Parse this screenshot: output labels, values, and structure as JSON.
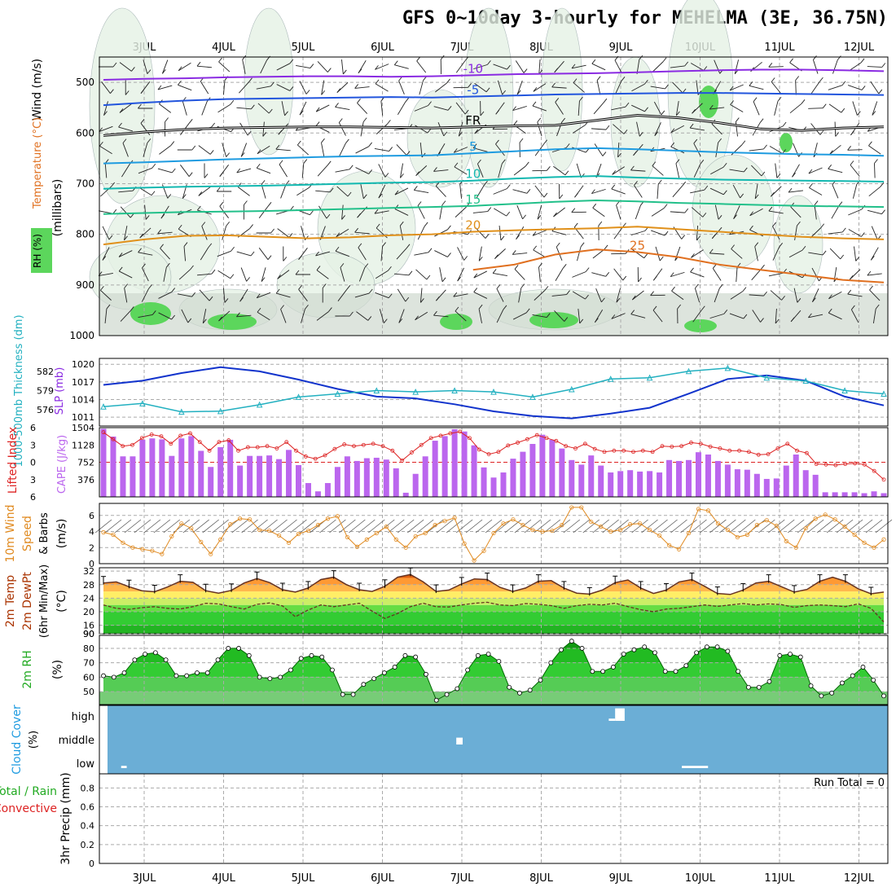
{
  "title": "GFS 0~10day 3-hourly for MEHELMA (3E, 36.75N)",
  "colors": {
    "purple": "#8a2be2",
    "blue": "#2255dd",
    "lightblue": "#1e9be0",
    "teal": "#12b8b0",
    "green": "#22c08a",
    "orange": "#e0901a",
    "darkorange": "#e07020",
    "cape": "#bb66ee",
    "lifted": "#dd2222",
    "slp": "#1133cc",
    "thick": "#22b0c0",
    "wind10": "#e08a20",
    "rhFill": "#3ad43a",
    "cloud": "#6baed6"
  },
  "panel_labels": {
    "upper": {
      "wind": "Wind (m/s)",
      "temperature": "Temperature (°C)",
      "rh": "RH (%)",
      "millibars": "(millibars)"
    },
    "slp": {
      "thickness": "1000-500mb Thickness (dm)",
      "slp": "SLP (mb)"
    },
    "cape": {
      "lifted": "Lifted Index",
      "cape": "CAPE (J/kg)"
    },
    "wind10": {
      "title": "10m Wind",
      "speed": "Speed",
      "barbs": "& Barbs",
      "unit": "(m/s)"
    },
    "temp2m": {
      "temp": "2m Temp",
      "dewpt": "2m DewPt",
      "minmax": "(6hr Min/Max)",
      "unit": "(°C)"
    },
    "rh2m": {
      "label": "2m RH",
      "unit": "(%)"
    },
    "cloud": {
      "label": "Cloud Cover",
      "unit": "(%)"
    },
    "precip": {
      "total": "Total / Rain",
      "conv": "Convective",
      "label": "3hr Precip (mm)",
      "run_total": "Run Total = 0"
    }
  },
  "chart_data": [
    {
      "type": "line",
      "name": "upper-air",
      "x_dates": [
        "3JUL",
        "4JUL",
        "5JUL",
        "6JUL",
        "7JUL",
        "8JUL",
        "9JUL",
        "10JUL",
        "11JUL",
        "12JUL"
      ],
      "y_ticks": [
        500,
        600,
        700,
        800,
        900,
        1000
      ],
      "ylim": [
        450,
        1000
      ],
      "contours": [
        {
          "label": "-10",
          "kind": "temperature",
          "values": [
            495,
            493,
            492,
            490,
            489,
            488,
            488,
            489,
            488,
            486,
            484,
            483,
            482,
            480,
            478,
            476,
            475,
            475,
            476,
            478
          ]
        },
        {
          "label": "-5",
          "kind": "temperature",
          "values": [
            545,
            540,
            536,
            533,
            532,
            531,
            530,
            529,
            530,
            528,
            526,
            524,
            523,
            522,
            521,
            521,
            522,
            523,
            524,
            525
          ]
        },
        {
          "label": "FR",
          "kind": "temperature",
          "values": [
            605,
            598,
            593,
            590,
            589,
            588,
            588,
            589,
            590,
            588,
            586,
            585,
            575,
            565,
            570,
            580,
            592,
            595,
            590,
            588
          ]
        },
        {
          "label": "5",
          "kind": "temperature",
          "values": [
            660,
            658,
            655,
            652,
            650,
            648,
            646,
            645,
            644,
            640,
            636,
            632,
            630,
            632,
            635,
            638,
            640,
            642,
            643,
            645
          ]
        },
        {
          "label": "10",
          "kind": "temperature",
          "values": [
            710,
            708,
            706,
            705,
            704,
            702,
            700,
            698,
            697,
            694,
            690,
            687,
            685,
            688,
            690,
            692,
            693,
            694,
            695,
            696
          ]
        },
        {
          "label": "15",
          "kind": "temperature",
          "values": [
            760,
            758,
            756,
            755,
            754,
            752,
            750,
            748,
            746,
            744,
            740,
            736,
            733,
            735,
            738,
            740,
            742,
            744,
            745,
            746
          ]
        },
        {
          "label": "20",
          "kind": "temperature",
          "values": [
            820,
            810,
            803,
            802,
            805,
            808,
            806,
            802,
            800,
            795,
            792,
            790,
            788,
            785,
            790,
            795,
            800,
            805,
            808,
            810
          ]
        },
        {
          "label": "25",
          "kind": "temperature",
          "values": [
            null,
            null,
            null,
            null,
            null,
            null,
            null,
            null,
            null,
            870,
            860,
            840,
            830,
            835,
            845,
            860,
            870,
            880,
            890,
            895
          ]
        }
      ]
    },
    {
      "type": "line",
      "name": "slp-thickness",
      "series": [
        {
          "name": "SLP (mb)",
          "values": [
            1016.5,
            1017.2,
            1018.5,
            1019.5,
            1018.8,
            1017.4,
            1015.8,
            1014.5,
            1014.2,
            1013.2,
            1012.0,
            1011.2,
            1010.8,
            1011.6,
            1012.6,
            1015.0,
            1017.5,
            1018.1,
            1017.2,
            1014.5,
            1013.0
          ]
        },
        {
          "name": "1000-500mb Thickness (dm)",
          "values": [
            576.5,
            577.0,
            575.7,
            575.8,
            576.8,
            578.0,
            578.5,
            579.0,
            578.8,
            579.0,
            578.8,
            578.0,
            579.2,
            580.8,
            581.0,
            582.0,
            582.5,
            581.0,
            580.5,
            579.0,
            578.5
          ]
        }
      ],
      "slp_ticks": [
        1011,
        1014,
        1017,
        1020
      ],
      "thick_ticks": [
        576,
        579,
        582
      ]
    },
    {
      "type": "bar",
      "name": "cape-lifted",
      "cape_ticks": [
        376,
        752,
        1128,
        1504
      ],
      "li_ticks": [
        -6,
        -3,
        0,
        3,
        6
      ],
      "cape": [
        1480,
        1310,
        880,
        880,
        1240,
        1270,
        1250,
        890,
        1270,
        1320,
        1000,
        650,
        1080,
        1240,
        680,
        890,
        890,
        900,
        820,
        1020,
        690,
        300,
        120,
        300,
        650,
        880,
        780,
        840,
        850,
        810,
        620,
        90,
        500,
        880,
        1220,
        1320,
        1470,
        1420,
        1120,
        640,
        420,
        530,
        830,
        980,
        1150,
        1350,
        1240,
        1050,
        800,
        700,
        900,
        680,
        530,
        560,
        580,
        550,
        560,
        530,
        800,
        780,
        800,
        970,
        920,
        780,
        700,
        600,
        590,
        500,
        390,
        400,
        680,
        920,
        580,
        480,
        100,
        100,
        100,
        100,
        80,
        120,
        80
      ],
      "lifted": [
        -5.2,
        -4.0,
        -2.8,
        -3.0,
        -4.2,
        -4.8,
        -4.5,
        -3.2,
        -4.6,
        -5.0,
        -3.5,
        -2.0,
        -3.5,
        -3.8,
        -2.0,
        -2.6,
        -2.6,
        -2.8,
        -2.4,
        -3.5,
        -2.0,
        -1.0,
        -0.6,
        -1.2,
        -2.3,
        -3.1,
        -2.8,
        -3.0,
        -3.2,
        -2.8,
        -2.0,
        -0.3,
        -1.7,
        -3.0,
        -4.2,
        -4.6,
        -5.0,
        -5.3,
        -4.2,
        -2.2,
        -1.4,
        -1.8,
        -2.9,
        -3.4,
        -4.0,
        -4.7,
        -4.2,
        -3.7,
        -2.8,
        -2.4,
        -3.2,
        -2.3,
        -1.8,
        -2.0,
        -2.0,
        -1.8,
        -2.0,
        -1.8,
        -2.8,
        -2.7,
        -2.8,
        -3.4,
        -3.2,
        -2.7,
        -2.4,
        -2.0,
        -2.0,
        -1.8,
        -1.3,
        -1.4,
        -2.4,
        -3.2,
        -2.0,
        -1.6,
        0.3,
        0.4,
        0.5,
        0.3,
        0.2,
        0.4,
        1.5,
        3.0
      ]
    },
    {
      "type": "line",
      "name": "10m-wind",
      "y_ticks": [
        0,
        2,
        4,
        6
      ],
      "speed": [
        3.9,
        3.6,
        2.6,
        2.0,
        1.8,
        1.6,
        1.2,
        3.4,
        5.0,
        4.4,
        2.7,
        1.2,
        3.0,
        4.9,
        5.6,
        5.5,
        4.2,
        4.1,
        3.5,
        2.6,
        3.7,
        4.1,
        4.8,
        5.6,
        5.9,
        3.3,
        2.1,
        3.0,
        3.8,
        4.6,
        3.0,
        2.0,
        3.4,
        3.8,
        4.8,
        5.3,
        5.7,
        2.5,
        0.4,
        1.6,
        3.8,
        5.0,
        5.5,
        4.8,
        4.2,
        4.0,
        4.1,
        4.8,
        7.0,
        7.0,
        5.2,
        4.6,
        4.0,
        4.2,
        4.9,
        5.0,
        4.2,
        3.5,
        2.3,
        1.8,
        3.8,
        6.8,
        6.6,
        5.0,
        4.2,
        3.3,
        3.6,
        4.8,
        5.4,
        4.7,
        2.8,
        2.0,
        4.4,
        5.6,
        6.1,
        5.5,
        4.6,
        3.6,
        2.6,
        2.0,
        3.0
      ]
    },
    {
      "type": "area",
      "name": "2m-temp",
      "y_ticks": [
        16,
        20,
        24,
        28,
        32
      ],
      "temp": [
        28.5,
        28.8,
        27.4,
        26.2,
        25.9,
        27.3,
        29.0,
        28.7,
        26.2,
        25.5,
        26.3,
        28.5,
        29.8,
        28.6,
        26.5,
        25.8,
        27.0,
        29.5,
        30.2,
        28.0,
        26.5,
        26.0,
        27.5,
        30.2,
        31.0,
        28.8,
        26.0,
        26.4,
        28.2,
        29.7,
        29.5,
        27.2,
        26.0,
        27.0,
        29.0,
        29.2,
        27.0,
        25.5,
        25.2,
        26.4,
        28.6,
        29.4,
        27.0,
        25.4,
        26.4,
        28.8,
        29.5,
        27.5,
        25.4,
        25.1,
        26.4,
        28.5,
        29.0,
        27.4,
        25.8,
        26.6,
        29.0,
        30.2,
        29.0,
        26.8,
        25.3,
        25.8
      ],
      "dewpt": [
        22.0,
        21.0,
        20.7,
        21.2,
        21.5,
        21.0,
        20.8,
        21.5,
        22.5,
        22.3,
        21.5,
        20.8,
        22.2,
        22.6,
        21.7,
        18.5,
        20.5,
        22.0,
        21.5,
        22.0,
        22.5,
        20.2,
        18.0,
        19.5,
        21.5,
        22.5,
        21.5,
        21.4,
        22.0,
        22.5,
        22.8,
        22.0,
        21.8,
        22.4,
        22.2,
        21.8,
        21.0,
        21.8,
        22.2,
        22.0,
        22.5,
        21.5,
        20.6,
        20.0,
        20.8,
        21.0,
        21.5,
        22.0,
        21.6,
        22.0,
        22.4,
        22.0,
        22.3,
        22.1,
        21.3,
        21.8,
        22.0,
        21.8,
        21.5,
        22.3,
        21.0,
        17.0
      ]
    },
    {
      "type": "area",
      "name": "2m-rh",
      "y_ticks": [
        50,
        60,
        70,
        80,
        90
      ],
      "rh": [
        61,
        60,
        63,
        72,
        76,
        77,
        72,
        61,
        61,
        63,
        63,
        72,
        80,
        80,
        75,
        60,
        59,
        60,
        65,
        73,
        75,
        74,
        65,
        48,
        48,
        55,
        59,
        63,
        67,
        75,
        74,
        62,
        44,
        48,
        52,
        65,
        75,
        76,
        71,
        53,
        49,
        51,
        58,
        70,
        79,
        85,
        80,
        64,
        64,
        67,
        76,
        79,
        81,
        77,
        64,
        64,
        68,
        77,
        81,
        81,
        78,
        64,
        53,
        53,
        57,
        75,
        76,
        74,
        54,
        47,
        49,
        56,
        61,
        67,
        58,
        47
      ]
    },
    {
      "type": "bar",
      "name": "cloud-cover",
      "y_labels": [
        "high",
        "middle",
        "low"
      ],
      "blocks": [
        {
          "from": 0.06,
          "to": 0.13,
          "layer": "low",
          "amount": 0.1
        },
        {
          "from": 4.28,
          "to": 4.36,
          "layer": "middle",
          "amount": 0.3
        },
        {
          "from": 6.2,
          "to": 6.28,
          "layer": "high",
          "amount": 0.1
        },
        {
          "from": 6.28,
          "to": 6.4,
          "layer": "high",
          "amount": 0.55
        },
        {
          "from": 7.12,
          "to": 7.45,
          "layer": "low",
          "amount": 0.1
        }
      ]
    },
    {
      "type": "bar",
      "name": "precip",
      "y_ticks": [
        0,
        0.2,
        0.4,
        0.6,
        0.8
      ],
      "values": []
    }
  ]
}
